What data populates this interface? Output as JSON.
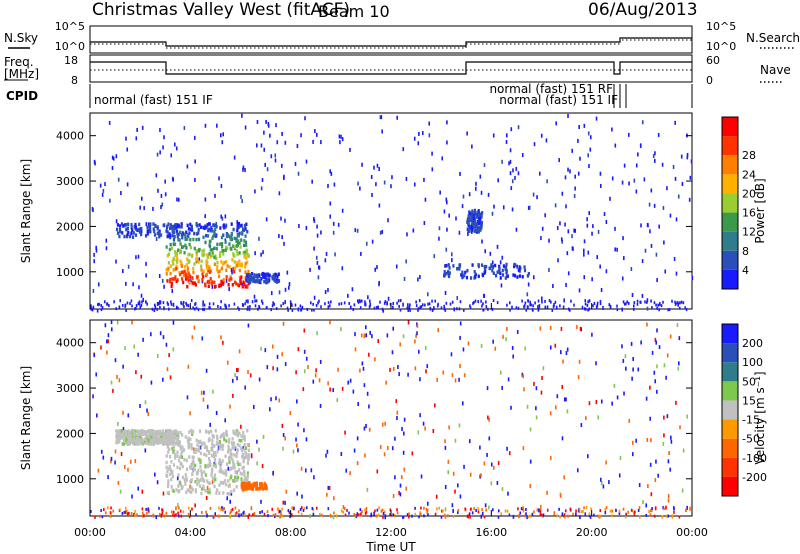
{
  "header": {
    "station": "Christmas Valley West (fitACF)",
    "beam": "Beam 10",
    "date": "06/Aug/2013"
  },
  "status_panels": {
    "nsky_label": "N.Sky",
    "nsky_ticks": [
      "10^5",
      "10^0"
    ],
    "nsearch_label": "N.Search",
    "nsearch_ticks": [
      "10^5",
      "10^0"
    ],
    "freq_label_line1": "Freq.",
    "freq_label_line2": "[MHz]",
    "freq_ticks": [
      "18",
      "8"
    ],
    "nave_label": "Nave",
    "nave_ticks": [
      "60",
      "0"
    ],
    "cpid_label": "CPID",
    "cpid_entries": [
      "normal (fast) 151 IF",
      "normal (fast) 151 RF",
      "normal (fast) 151 IF"
    ]
  },
  "x_axis": {
    "label": "Time UT",
    "ticks": [
      "00:00",
      "04:00",
      "08:00",
      "12:00",
      "16:00",
      "20:00",
      "00:00"
    ]
  },
  "chart_data": [
    {
      "type": "heatmap",
      "panel": "power",
      "ylabel": "Slant Range [km]",
      "yticks": [
        "1000",
        "2000",
        "3000",
        "4000"
      ],
      "ylim": [
        180,
        4500
      ],
      "xlim_hours": [
        0,
        24
      ],
      "colorbar_label": "Power [dB]",
      "colorbar_ticks": [
        "4",
        "8",
        "12",
        "16",
        "20",
        "24",
        "28"
      ],
      "colorbar_colors": [
        "#1a1aff",
        "#2a4fb8",
        "#2f7d8a",
        "#3a9a4a",
        "#9acd32",
        "#ffb000",
        "#ff8000",
        "#ff3300",
        "#ff0000"
      ],
      "echo_regions": [
        {
          "t": [
            3.0,
            6.3
          ],
          "range_km": [
            700,
            2100
          ],
          "level": "strong"
        },
        {
          "t": [
            1.0,
            3.5
          ],
          "range_km": [
            1800,
            2100
          ],
          "level": "weak"
        },
        {
          "t": [
            6.2,
            7.5
          ],
          "range_km": [
            800,
            1000
          ],
          "level": "weak"
        },
        {
          "t": [
            14.0,
            17.5
          ],
          "range_km": [
            900,
            1200
          ],
          "level": "weak"
        },
        {
          "t": [
            15.0,
            15.6
          ],
          "range_km": [
            1900,
            2400
          ],
          "level": "weak"
        }
      ]
    },
    {
      "type": "heatmap",
      "panel": "velocity",
      "ylabel": "Slant Range [km]",
      "yticks": [
        "1000",
        "2000",
        "3000",
        "4000"
      ],
      "ylim": [
        180,
        4500
      ],
      "xlim_hours": [
        0,
        24
      ],
      "colorbar_label": "Velocity [m s⁻¹]",
      "colorbar_ticks": [
        "200",
        "100",
        "50",
        "15",
        "-15",
        "-50",
        "-100",
        "-200"
      ],
      "colorbar_colors": [
        "#1a1aff",
        "#2a4fb8",
        "#2f7d8a",
        "#7ec850",
        "#c0c0c0",
        "#ff9900",
        "#ff6600",
        "#ff3300",
        "#ff0000"
      ],
      "echo_regions": [
        {
          "t": [
            3.0,
            6.3
          ],
          "range_km": [
            700,
            2100
          ],
          "level": "ground"
        },
        {
          "t": [
            1.0,
            3.5
          ],
          "range_km": [
            1800,
            2100
          ],
          "level": "ground"
        },
        {
          "t": [
            6.0,
            7.0
          ],
          "range_km": [
            800,
            950
          ],
          "level": "negative"
        }
      ]
    }
  ]
}
